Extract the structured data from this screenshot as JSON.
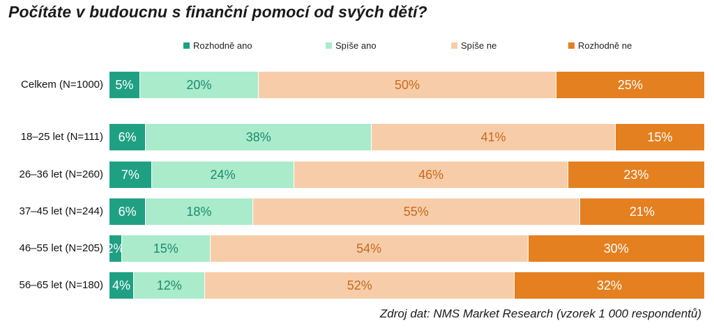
{
  "title": "Počítáte v budoucnu s finanční pomocí od svých dětí?",
  "source": "Zdroj dat: NMS Market Research (vzorek 1 000 respondentů)",
  "chart_data": {
    "type": "bar",
    "orientation": "horizontal",
    "stacked": true,
    "percent": true,
    "legend_position": "top",
    "categories": [
      "Celkem (N=1000)",
      "18–25 let (N=111)",
      "26–36 let (N=260)",
      "37–45 let (N=244)",
      "46–55 let (N=205)",
      "56–65 let (N=180)"
    ],
    "series": [
      {
        "name": "Rozhodně ano",
        "color": "#20a083",
        "text_color": "#ffffff",
        "values": [
          5,
          6,
          7,
          6,
          2,
          4
        ]
      },
      {
        "name": "Spíše ano",
        "color": "#a9ebcb",
        "text_color": "#1d8a6e",
        "values": [
          20,
          38,
          24,
          18,
          15,
          12
        ]
      },
      {
        "name": "Spíše ne",
        "color": "#f7cda9",
        "text_color": "#c8681f",
        "values": [
          50,
          41,
          46,
          55,
          54,
          52
        ]
      },
      {
        "name": "Rozhodně ne",
        "color": "#e48020",
        "text_color": "#ffffff",
        "values": [
          25,
          15,
          23,
          21,
          30,
          32
        ]
      }
    ],
    "value_labels": [
      [
        "5%",
        "6%",
        "7%",
        "6%",
        "2%",
        "4%"
      ],
      [
        "20%",
        "38%",
        "24%",
        "18%",
        "15%",
        "12%"
      ],
      [
        "50%",
        "41%",
        "46%",
        "55%",
        "54%",
        "52%"
      ],
      [
        "25%",
        "15%",
        "23%",
        "21%",
        "30%",
        "32%"
      ]
    ]
  }
}
